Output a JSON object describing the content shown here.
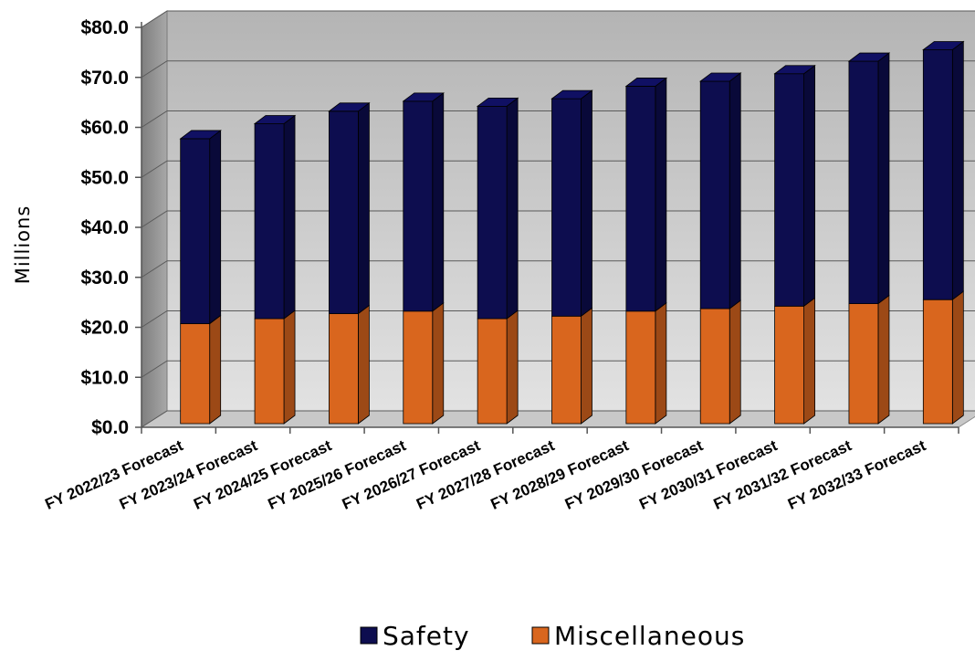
{
  "chart_data": {
    "type": "bar",
    "stacked": true,
    "three_d": true,
    "categories": [
      "FY 2022/23 Forecast",
      "FY 2023/24 Forecast",
      "FY 2024/25 Forecast",
      "FY 2025/26 Forecast",
      "FY 2026/27 Forecast",
      "FY 2027/28 Forecast",
      "FY 2028/29 Forecast",
      "FY 2029/30 Forecast",
      "FY 2030/31 Forecast",
      "FY 2031/32 Forecast",
      "FY 2032/33 Forecast"
    ],
    "series": [
      {
        "name": "Miscellaneous",
        "color": "#d9661e",
        "values": [
          20.0,
          21.0,
          22.0,
          22.5,
          21.0,
          21.5,
          22.5,
          23.0,
          23.5,
          24.0,
          24.8
        ]
      },
      {
        "name": "Safety",
        "color": "#0d0d4f",
        "values": [
          37.0,
          39.0,
          40.5,
          42.0,
          42.5,
          43.5,
          45.0,
          45.5,
          46.5,
          48.5,
          50.0
        ]
      }
    ],
    "ylabel": "Millions",
    "ylim": [
      0,
      80
    ],
    "yticks": [
      "$0.0",
      "$10.0",
      "$20.0",
      "$30.0",
      "$40.0",
      "$50.0",
      "$60.0",
      "$70.0",
      "$80.0"
    ],
    "grid": true,
    "legend": {
      "position": "bottom",
      "entries": [
        {
          "label": "Safety",
          "color": "#0d0d4f"
        },
        {
          "label": "Miscellaneous",
          "color": "#d9661e"
        }
      ]
    }
  }
}
